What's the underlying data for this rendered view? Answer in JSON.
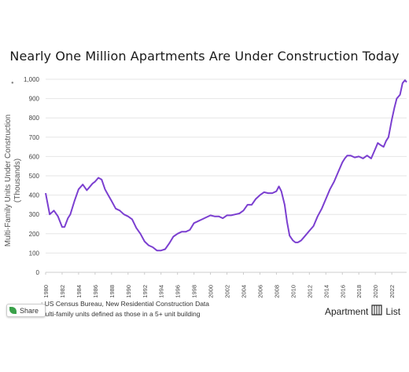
{
  "title": "Nearly One Million Apartments Are Under Construction Today",
  "ylabel_line1": "Multi-Family Units Under Construction",
  "ylabel_line2": "(Thousands)",
  "source_text": ": US Census Bureau, New Residential Construction Data",
  "note_text": "Aulti-family units defined as those in a 5+ unit building",
  "share_label": "Share",
  "brand": {
    "left": "Apartment",
    "right": "List"
  },
  "colors": {
    "line": "#7b3fd0",
    "grid": "#e6e6e6",
    "axis": "#cccccc"
  },
  "chart_data": {
    "type": "line",
    "title": "Nearly One Million Apartments Are Under Construction Today",
    "xlabel": "",
    "ylabel": "Multi-Family Units Under Construction (Thousands)",
    "ylim": [
      0,
      1000
    ],
    "xlim": [
      1980,
      2023.8
    ],
    "grid": true,
    "y_ticks": [
      "0",
      "100",
      "200",
      "300",
      "400",
      "500",
      "600",
      "700",
      "800",
      "900",
      "1,000"
    ],
    "x_ticks": [
      "1980",
      "1982",
      "1984",
      "1986",
      "1988",
      "1990",
      "1992",
      "1994",
      "1996",
      "1998",
      "2000",
      "2002",
      "2004",
      "2006",
      "2008",
      "2010",
      "2012",
      "2014",
      "2016",
      "2018",
      "2020",
      "2022"
    ],
    "series": [
      {
        "x": [
          1980,
          1980.5,
          1981,
          1981.5,
          1982,
          1982.3,
          1982.7,
          1983,
          1983.5,
          1984,
          1984.5,
          1985,
          1985.3,
          1985.7,
          1986,
          1986.4,
          1986.8,
          1987.2,
          1987.6,
          1988,
          1988.5,
          1989,
          1989.5,
          1990,
          1990.5,
          1991,
          1991.5,
          1992,
          1992.5,
          1993,
          1993.5,
          1994,
          1994.5,
          1995,
          1995.5,
          1996,
          1996.5,
          1997,
          1997.5,
          1998,
          1998.5,
          1999,
          1999.5,
          2000,
          2000.5,
          2001,
          2001.5,
          2002,
          2002.5,
          2003,
          2003.5,
          2004,
          2004.5,
          2005,
          2005.5,
          2006,
          2006.5,
          2007,
          2007.5,
          2008,
          2008.3,
          2008.6,
          2009,
          2009.3,
          2009.6,
          2010,
          2010.3,
          2010.6,
          2011,
          2011.5,
          2012,
          2012.5,
          2013,
          2013.5,
          2014,
          2014.5,
          2015,
          2015.5,
          2016,
          2016.3,
          2016.6,
          2017,
          2017.5,
          2018,
          2018.5,
          2019,
          2019.5,
          2020,
          2020.3,
          2020.6,
          2021,
          2021.3,
          2021.6,
          2022,
          2022.3,
          2022.6,
          2023,
          2023.3,
          2023.6,
          2023.8
        ],
        "y": [
          410,
          300,
          320,
          290,
          235,
          235,
          280,
          300,
          370,
          430,
          455,
          425,
          440,
          460,
          470,
          490,
          480,
          430,
          400,
          370,
          330,
          320,
          300,
          290,
          275,
          230,
          200,
          160,
          140,
          130,
          113,
          113,
          120,
          150,
          185,
          200,
          210,
          210,
          220,
          255,
          265,
          275,
          285,
          295,
          290,
          290,
          280,
          295,
          295,
          300,
          305,
          320,
          350,
          350,
          380,
          400,
          415,
          410,
          410,
          420,
          445,
          420,
          350,
          260,
          190,
          165,
          155,
          155,
          165,
          190,
          215,
          240,
          290,
          330,
          380,
          430,
          470,
          520,
          570,
          590,
          605,
          605,
          595,
          600,
          590,
          605,
          590,
          640,
          670,
          660,
          650,
          680,
          700,
          790,
          850,
          900,
          920,
          980,
          995,
          985
        ]
      }
    ]
  }
}
